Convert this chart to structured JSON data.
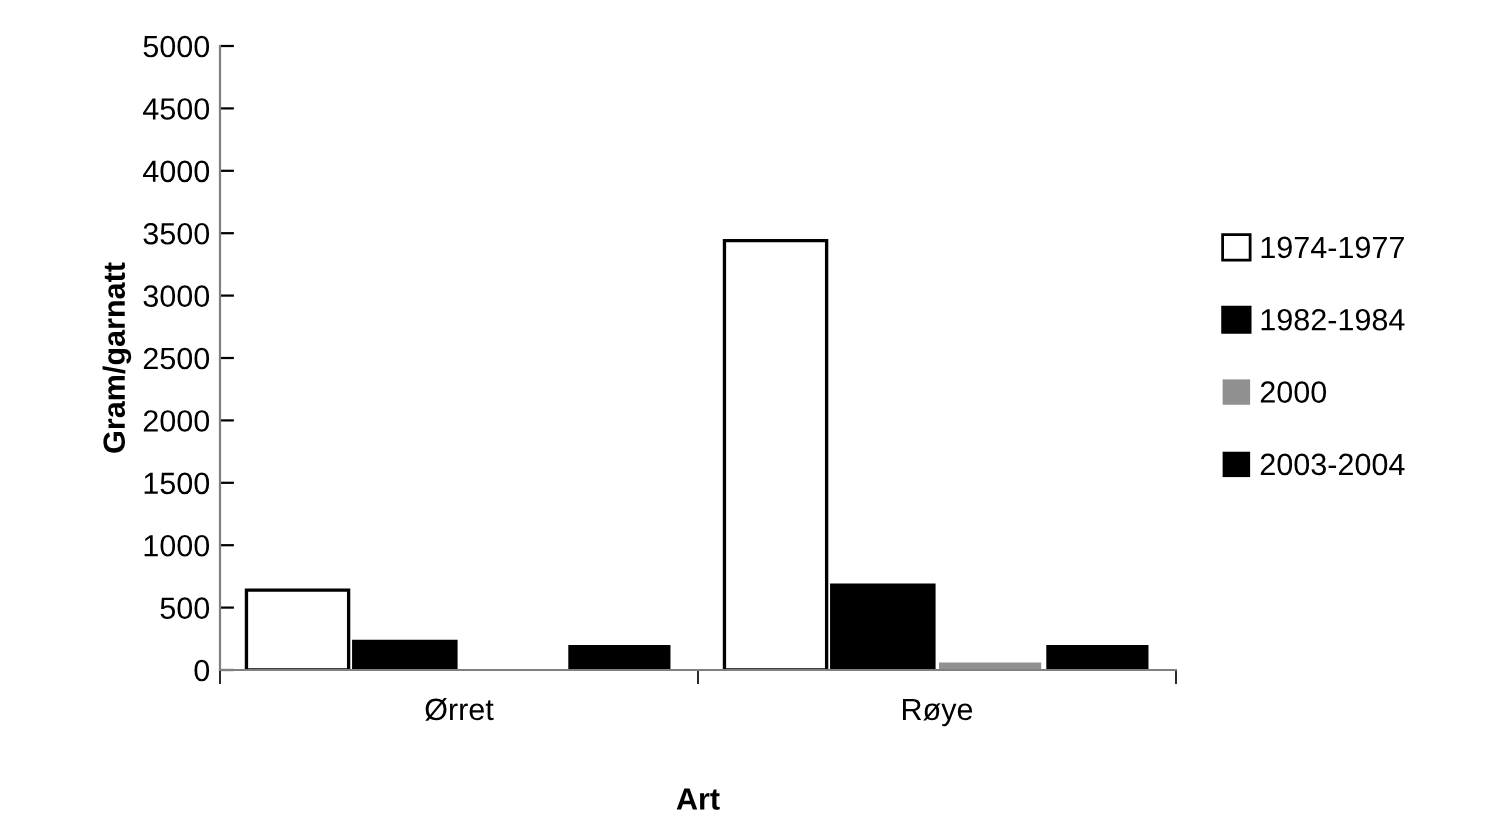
{
  "chart_data": {
    "type": "bar",
    "xlabel": "Art",
    "ylabel": "Gram/garnatt",
    "categories": [
      "Ørret",
      "Røye"
    ],
    "series": [
      {
        "name": "1974-1977",
        "color": "#ffffff",
        "values": [
          640,
          3440
        ]
      },
      {
        "name": "1982-1984",
        "color": "#000000",
        "values": [
          230,
          680
        ]
      },
      {
        "name": "2000",
        "color": "#909090",
        "values": [
          null,
          60
        ]
      },
      {
        "name": "2003-2004",
        "color": "#000000",
        "values": [
          200,
          200
        ]
      }
    ],
    "ylim": [
      0,
      5000
    ],
    "yticks": [
      0,
      500,
      1000,
      1500,
      2000,
      2500,
      3000,
      3500,
      4000,
      4500,
      5000
    ],
    "grid": false,
    "legend": "right"
  }
}
